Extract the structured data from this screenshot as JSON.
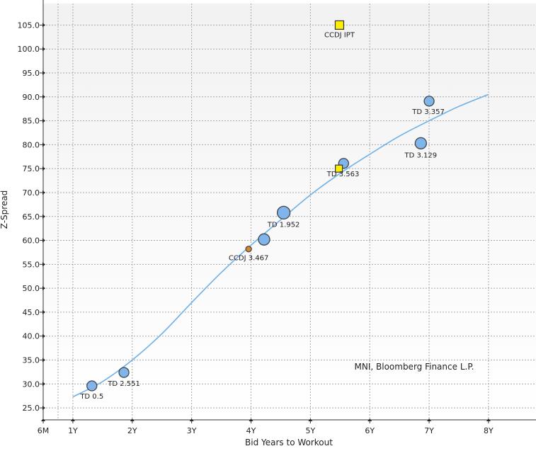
{
  "chart_data": {
    "type": "scatter",
    "xlabel": "Bid Years to Workout",
    "ylabel": "Z-Spread",
    "xlim": [
      0.5,
      8.8
    ],
    "ylim": [
      22.5,
      109.5
    ],
    "y_ticks": [
      25.0,
      30.0,
      35.0,
      40.0,
      45.0,
      50.0,
      55.0,
      60.0,
      65.0,
      70.0,
      75.0,
      80.0,
      85.0,
      90.0,
      95.0,
      100.0,
      105.0
    ],
    "y_tick_labels": [
      "25.0",
      "30.0",
      "35.0",
      "40.0",
      "45.0",
      "50.0",
      "55.0",
      "60.0",
      "65.0",
      "70.0",
      "75.0",
      "80.0",
      "85.0",
      "90.0",
      "95.0",
      "100.0",
      "105.0"
    ],
    "x_ticks": [
      0.5,
      1,
      2,
      3,
      4,
      5,
      6,
      7,
      8
    ],
    "x_tick_labels": [
      "6M",
      "1Y",
      "2Y",
      "3Y",
      "4Y",
      "5Y",
      "6Y",
      "7Y",
      "8Y"
    ],
    "x_minor_grid": [
      0.75
    ],
    "grid": true,
    "annotation": "MNI, Bloomberg Finance L.P.",
    "colors": {
      "td_marker": "#7fb5ea",
      "ccdj_marker": "#ffee00",
      "ccdj_small_marker": "#d4882a",
      "curve": "#6fb0e6"
    },
    "fit_curve": {
      "name": "fit",
      "x": [
        1.0,
        1.5,
        2.0,
        2.5,
        3.0,
        3.5,
        4.0,
        4.5,
        5.0,
        5.5,
        6.0,
        6.5,
        7.0,
        7.5,
        8.0
      ],
      "y": [
        27.3,
        30.5,
        35.0,
        40.5,
        47.0,
        53.3,
        59.0,
        64.3,
        69.5,
        74.0,
        78.0,
        81.8,
        85.0,
        88.0,
        90.5
      ]
    },
    "series": [
      {
        "name": "TD",
        "marker": "circle",
        "points": [
          {
            "x": 1.32,
            "y": 29.6,
            "r": 7,
            "label": "TD 0.5"
          },
          {
            "x": 1.86,
            "y": 32.4,
            "r": 7,
            "label": "TD 2.551"
          },
          {
            "x": 4.22,
            "y": 60.2,
            "r": 8,
            "label": ""
          },
          {
            "x": 4.55,
            "y": 65.8,
            "r": 9,
            "label": "TD 1.952"
          },
          {
            "x": 5.56,
            "y": 76.1,
            "r": 7,
            "label": ""
          },
          {
            "x": 6.86,
            "y": 80.3,
            "r": 8,
            "label": "TD 3.129"
          },
          {
            "x": 7.0,
            "y": 89.1,
            "r": 7,
            "label": "TD 3.357"
          }
        ]
      },
      {
        "name": "CCDJ",
        "marker": "square",
        "points": [
          {
            "x": 5.49,
            "y": 105.0,
            "r": 6,
            "label": "CCDJ IPT"
          },
          {
            "x": 5.48,
            "y": 75.0,
            "r": 5,
            "label": "TD 3.563"
          },
          {
            "x": 3.96,
            "y": 58.2,
            "r": 4,
            "marker": "circle",
            "label": "CCDJ 3.467"
          }
        ]
      }
    ]
  }
}
